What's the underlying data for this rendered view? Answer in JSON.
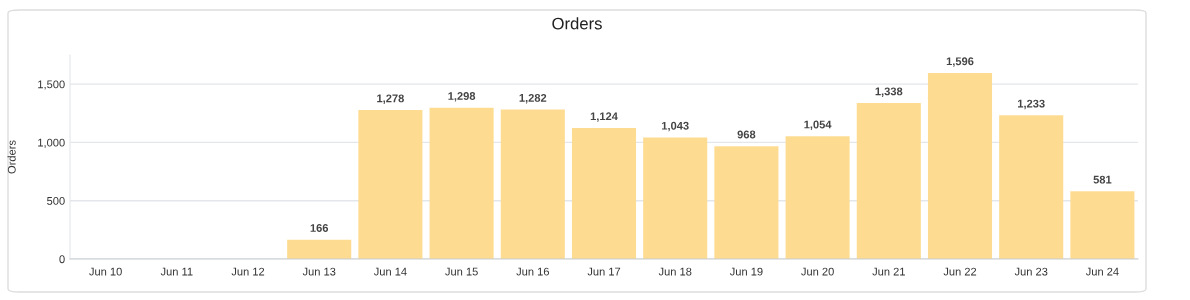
{
  "chart_data": {
    "type": "bar",
    "title": "Orders",
    "ylabel": "Orders",
    "categories": [
      "Jun 10",
      "Jun 11",
      "Jun 12",
      "Jun 13",
      "Jun 14",
      "Jun 15",
      "Jun 16",
      "Jun 17",
      "Jun 18",
      "Jun 19",
      "Jun 20",
      "Jun 21",
      "Jun 22",
      "Jun 23",
      "Jun 24"
    ],
    "values": [
      0,
      0,
      0,
      166,
      1278,
      1298,
      1282,
      1124,
      1043,
      968,
      1054,
      1338,
      1596,
      1233,
      581
    ],
    "value_labels": [
      null,
      null,
      null,
      "166",
      "1,278",
      "1,298",
      "1,282",
      "1,124",
      "1,043",
      "968",
      "1,054",
      "1,338",
      "1,596",
      "1,233",
      "581"
    ],
    "color": "#fddc92",
    "ylim": [
      0,
      1750
    ],
    "yticks": [
      0,
      {
        "value": 500,
        "label": "500"
      },
      {
        "value": 1000,
        "label": "1,000"
      },
      {
        "value": 1500,
        "label": "1,500"
      }
    ],
    "grid": "y"
  }
}
